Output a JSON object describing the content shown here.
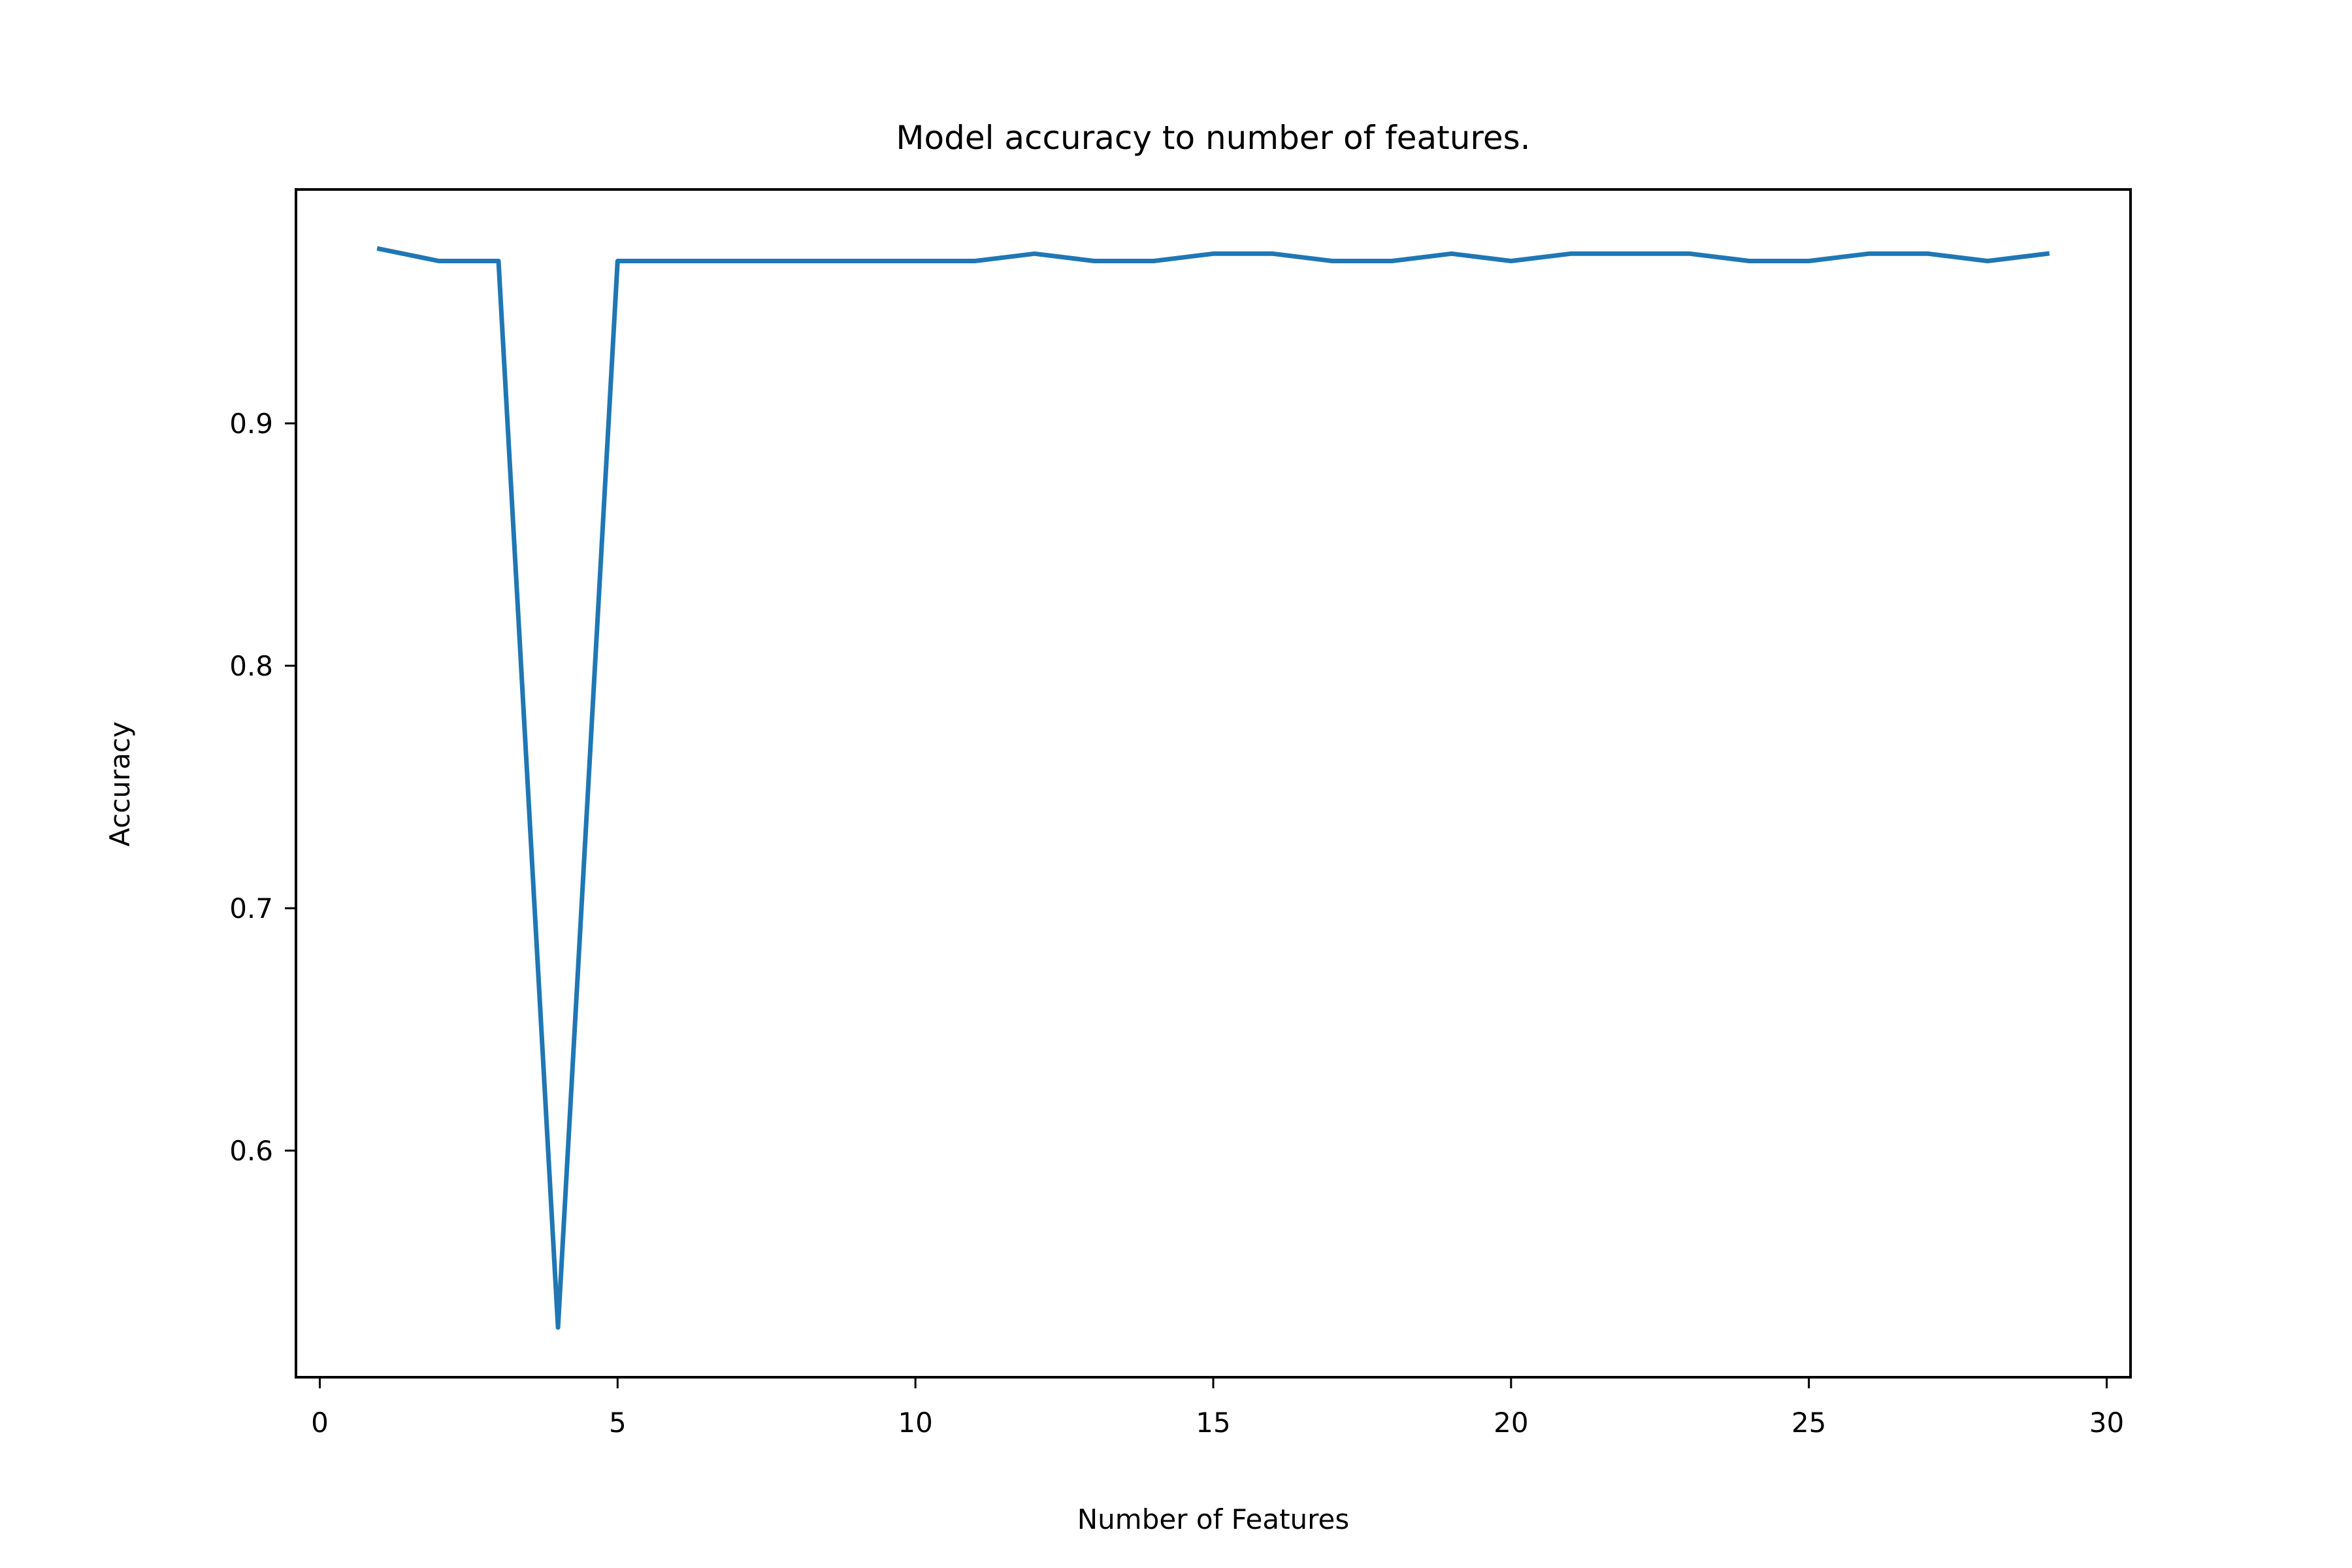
{
  "chart_data": {
    "type": "line",
    "title": "Model accuracy to number of features.",
    "xlabel": "Number of Features",
    "ylabel": "Accuracy",
    "xlim": [
      -0.4,
      30.4
    ],
    "ylim": [
      0.5065,
      0.9965
    ],
    "xticks": [
      0,
      5,
      10,
      15,
      20,
      25,
      30
    ],
    "xtick_labels": [
      "0",
      "5",
      "10",
      "15",
      "20",
      "25",
      "30"
    ],
    "yticks": [
      0.6,
      0.7,
      0.8,
      0.9
    ],
    "ytick_labels": [
      "0.6",
      "0.7",
      "0.8",
      "0.9"
    ],
    "grid": false,
    "series": [
      {
        "name": "accuracy",
        "color": "#1f77b4",
        "x": [
          1,
          2,
          3,
          4,
          5,
          6,
          7,
          8,
          9,
          10,
          11,
          12,
          13,
          14,
          15,
          16,
          17,
          18,
          19,
          20,
          21,
          22,
          23,
          24,
          25,
          26,
          27,
          28,
          29
        ],
        "y": [
          0.972,
          0.967,
          0.967,
          0.527,
          0.967,
          0.967,
          0.967,
          0.967,
          0.967,
          0.967,
          0.967,
          0.97,
          0.967,
          0.967,
          0.97,
          0.97,
          0.967,
          0.967,
          0.97,
          0.967,
          0.97,
          0.97,
          0.97,
          0.967,
          0.967,
          0.97,
          0.97,
          0.967,
          0.97
        ]
      }
    ]
  }
}
